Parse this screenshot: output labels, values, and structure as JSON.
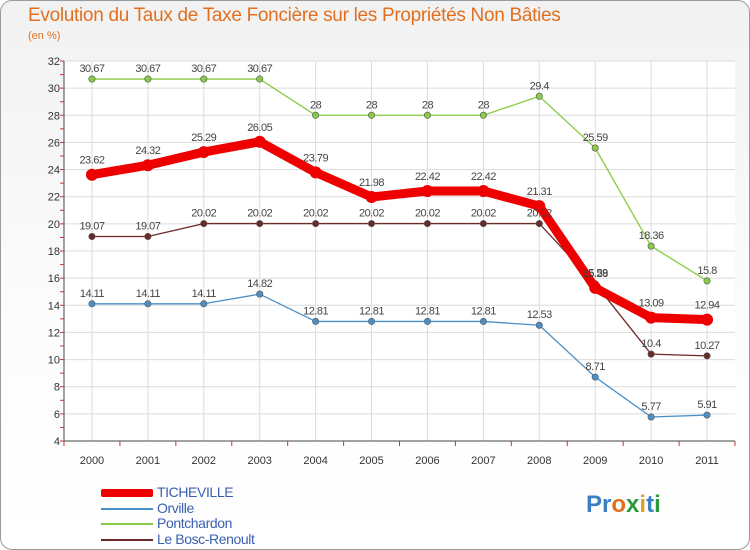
{
  "title": "Evolution du Taux de Taxe Foncière sur les Propriétés Non Bâties",
  "unit_label": "(en %)",
  "logo": {
    "letters": [
      "P",
      "r",
      "o",
      "x",
      "i",
      "t",
      "i"
    ],
    "colors": [
      "#3a7fc4",
      "#3a7fc4",
      "#e07020",
      "#2a9a3a",
      "#e0a020",
      "#3a7fc4",
      "#2a9a3a"
    ]
  },
  "chart_data": {
    "type": "line",
    "title": "Evolution du Taux de Taxe Foncière sur les Propriétés Non Bâties",
    "ylabel": "(en %)",
    "xlabel": "",
    "categories": [
      "2000",
      "2001",
      "2002",
      "2003",
      "2004",
      "2005",
      "2006",
      "2007",
      "2008",
      "2009",
      "2010",
      "2011"
    ],
    "ylim": [
      4,
      32
    ],
    "yticks": [
      4,
      6,
      8,
      10,
      12,
      14,
      16,
      18,
      20,
      22,
      24,
      26,
      28,
      30,
      32
    ],
    "grid": true,
    "series": [
      {
        "name": "TICHEVILLE",
        "color": "#ee0000",
        "emphasis": true,
        "values": [
          23.62,
          24.32,
          25.29,
          26.05,
          23.79,
          21.98,
          22.42,
          22.42,
          21.31,
          15.28,
          13.09,
          12.94
        ],
        "labels": [
          "23.62",
          "24.32",
          "25.29",
          "26.05",
          "23.79",
          "21.98",
          "22.42",
          "22.42",
          "21.31",
          "15.28",
          "13.09",
          "12.94"
        ]
      },
      {
        "name": "Orville",
        "color": "#4a90c8",
        "emphasis": false,
        "values": [
          14.11,
          14.11,
          14.11,
          14.82,
          12.81,
          12.81,
          12.81,
          12.81,
          12.53,
          8.71,
          5.77,
          5.91
        ],
        "labels": [
          "14.11",
          "14.11",
          "14.11",
          "14.82",
          "12.81",
          "12.81",
          "12.81",
          "12.81",
          "12.53",
          "8.71",
          "5.77",
          "5.91"
        ]
      },
      {
        "name": "Pontchardon",
        "color": "#88cc44",
        "emphasis": false,
        "values": [
          30.67,
          30.67,
          30.67,
          30.67,
          28,
          28,
          28,
          28,
          29.4,
          25.59,
          18.36,
          15.8
        ],
        "labels": [
          "30.67",
          "30.67",
          "30.67",
          "30.67",
          "28",
          "28",
          "28",
          "28",
          "29.4",
          "25.59",
          "18.36",
          "15.8"
        ]
      },
      {
        "name": "Le Bosc-Renoult",
        "color": "#6b2a2a",
        "emphasis": false,
        "values": [
          19.07,
          19.07,
          20.02,
          20.02,
          20.02,
          20.02,
          20.02,
          20.02,
          20.02,
          15.59,
          10.4,
          10.27
        ],
        "labels": [
          "19.07",
          "19.07",
          "20.02",
          "20.02",
          "20.02",
          "20.02",
          "20.02",
          "20.02",
          "20.02",
          "15.59",
          "10.4",
          "10.27"
        ]
      }
    ]
  }
}
